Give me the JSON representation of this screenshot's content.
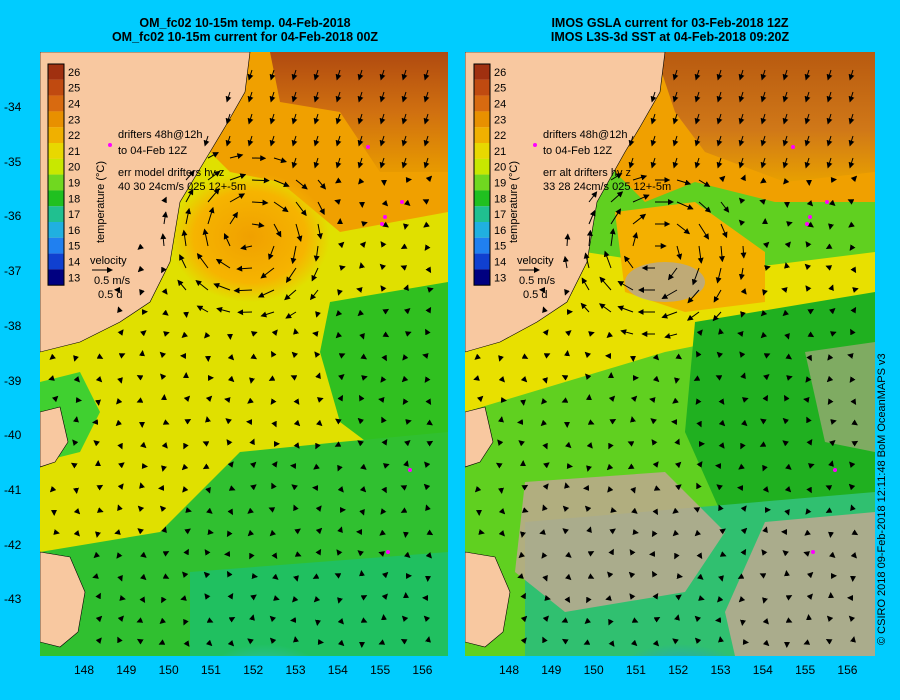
{
  "left_panel": {
    "title_line1": "OM_fc02 10-15m temp. 04-Feb-2018",
    "title_line2": "OM_fc02 10-15m current for 04-Feb-2018 00Z",
    "drifters_line1": "drifters 48h@12h",
    "drifters_line2": "to 04-Feb 12Z",
    "err_line1": "err model drifters hv z",
    "err_line2": "40 30 24cm/s 025 12+-5m"
  },
  "right_panel": {
    "title_line1": "IMOS GSLA current for 03-Feb-2018 12Z",
    "title_line2": "IMOS L3S-3d SST at 04-Feb-2018 09:20Z",
    "drifters_line1": "drifters 48h@12h",
    "drifters_line2": "to 04-Feb 12Z",
    "err_line1": "err alt drifters hv z",
    "err_line2": "33 28 24cm/s 025 12+-5m"
  },
  "colorbar": {
    "label": "temperature (°C)",
    "ticks": [
      "26",
      "25",
      "24",
      "23",
      "22",
      "21",
      "20",
      "19",
      "18",
      "17",
      "16",
      "15",
      "14",
      "13"
    ]
  },
  "velocity_key": {
    "label": "velocity",
    "speed": "0.5 m/s",
    "time": "0.5 d"
  },
  "x_ticks": [
    "148",
    "149",
    "150",
    "151",
    "152",
    "153",
    "154",
    "155",
    "156"
  ],
  "y_ticks": [
    "-34",
    "-35",
    "-36",
    "-37",
    "-38",
    "-39",
    "-40",
    "-41",
    "-42",
    "-43"
  ],
  "credit": "© CSIRO 2018   09-Feb-2018 12:11:48 BoM OceanMAPS v3",
  "colors": {
    "background": "#00ccff",
    "land": "#f8c8a0",
    "missing": "#c0a890",
    "drifter": "#ff00ff"
  }
}
